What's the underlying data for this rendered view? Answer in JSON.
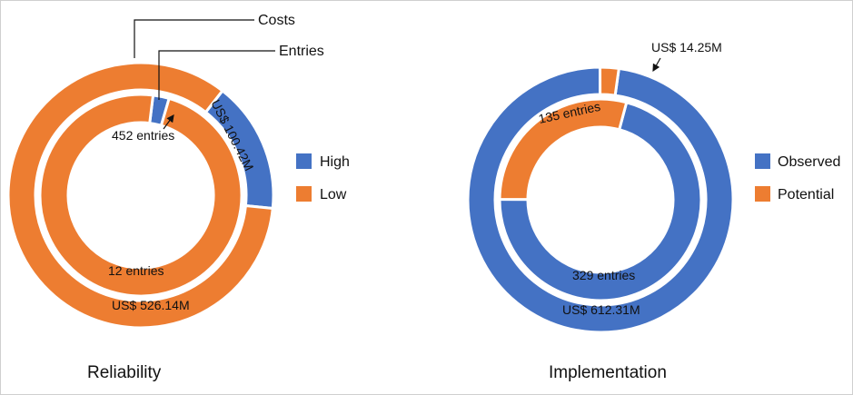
{
  "colors": {
    "high": "#4472C4",
    "low": "#ED7D31"
  },
  "chart_data": [
    {
      "type": "donut",
      "title": "Reliability",
      "legend": [
        "High",
        "Low"
      ],
      "legend_position": "right",
      "rings": [
        {
          "name": "Costs",
          "values": [
            100.42,
            526.14
          ],
          "labels": [
            "US$ 100.42M",
            "US$ 526.14M"
          ]
        },
        {
          "name": "Entries",
          "values": [
            12,
            452
          ],
          "labels": [
            "12 entries",
            "452 entries"
          ]
        }
      ],
      "ring_annotations": {
        "outer": "Costs",
        "inner": "Entries"
      }
    },
    {
      "type": "donut",
      "title": "Implementation",
      "legend": [
        "Observed",
        "Potential"
      ],
      "legend_position": "right",
      "rings": [
        {
          "name": "Costs",
          "values": [
            612.31,
            14.25
          ],
          "labels": [
            "US$ 612.31M",
            "US$ 14.25M"
          ]
        },
        {
          "name": "Entries",
          "values": [
            329,
            135
          ],
          "labels": [
            "329 entries",
            "135 entries"
          ]
        }
      ]
    }
  ]
}
